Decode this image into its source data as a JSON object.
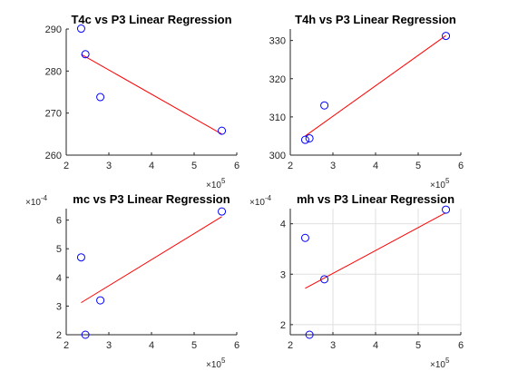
{
  "chart_data": [
    {
      "type": "scatter",
      "title": "T4c vs P3 Linear Regression",
      "xlim": [
        2,
        6
      ],
      "ylim": [
        260,
        290
      ],
      "x_ticks": [
        "2",
        "3",
        "4",
        "5",
        "6"
      ],
      "y_ticks": [
        "260",
        "270",
        "280",
        "290"
      ],
      "x_multiplier": {
        "base": "×10",
        "exponent": "5"
      },
      "y_multiplier": null,
      "grid": false,
      "points": {
        "x": [
          2.35,
          2.45,
          2.8,
          5.65
        ],
        "y": [
          290.1,
          284.0,
          273.8,
          265.8
        ]
      },
      "fit_line": {
        "x": [
          2.35,
          5.65
        ],
        "y": [
          284.0,
          265.0
        ]
      },
      "point_color": "#0000ff",
      "line_color": "#ff0000"
    },
    {
      "type": "scatter",
      "title": "T4h vs P3 Linear Regression",
      "xlim": [
        2,
        6
      ],
      "ylim": [
        300,
        333
      ],
      "x_ticks": [
        "2",
        "3",
        "4",
        "5",
        "6"
      ],
      "y_ticks": [
        "300",
        "310",
        "320",
        "330"
      ],
      "x_multiplier": {
        "base": "×10",
        "exponent": "5"
      },
      "y_multiplier": null,
      "grid": false,
      "points": {
        "x": [
          2.35,
          2.45,
          2.8,
          5.65
        ],
        "y": [
          304.0,
          304.4,
          313.0,
          331.2
        ]
      },
      "fit_line": {
        "x": [
          2.35,
          5.65
        ],
        "y": [
          305.0,
          331.3
        ]
      },
      "point_color": "#0000ff",
      "line_color": "#ff0000"
    },
    {
      "type": "scatter",
      "title": "mc vs P3 Linear Regression",
      "xlim": [
        2,
        6
      ],
      "ylim": [
        2,
        6.4
      ],
      "x_ticks": [
        "2",
        "3",
        "4",
        "5",
        "6"
      ],
      "y_ticks": [
        "2",
        "3",
        "4",
        "5",
        "6"
      ],
      "x_multiplier": {
        "base": "×10",
        "exponent": "5"
      },
      "y_multiplier": {
        "base": "×10",
        "exponent": "-4"
      },
      "grid": false,
      "points": {
        "x": [
          2.35,
          2.45,
          2.8,
          5.65
        ],
        "y": [
          4.7,
          2.0,
          3.2,
          6.3
        ]
      },
      "fit_line": {
        "x": [
          2.35,
          5.65
        ],
        "y": [
          3.12,
          6.12
        ]
      },
      "point_color": "#0000ff",
      "line_color": "#ff0000"
    },
    {
      "type": "scatter",
      "title": "mh vs P3 Linear Regression",
      "xlim": [
        2,
        6
      ],
      "ylim": [
        1.8,
        4.3
      ],
      "x_ticks": [
        "2",
        "3",
        "4",
        "5",
        "6"
      ],
      "y_ticks": [
        "2",
        "3",
        "4"
      ],
      "x_multiplier": {
        "base": "×10",
        "exponent": "5"
      },
      "y_multiplier": {
        "base": "×10",
        "exponent": "-4"
      },
      "grid": true,
      "points": {
        "x": [
          2.35,
          2.45,
          2.8,
          5.65
        ],
        "y": [
          3.72,
          1.8,
          2.9,
          4.28
        ]
      },
      "fit_line": {
        "x": [
          2.35,
          5.65
        ],
        "y": [
          2.72,
          4.22
        ]
      },
      "point_color": "#0000ff",
      "line_color": "#ff0000"
    }
  ]
}
